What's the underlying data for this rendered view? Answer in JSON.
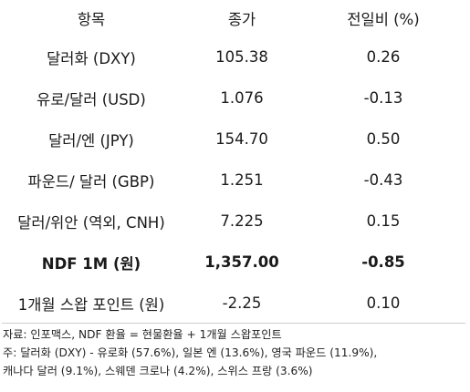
{
  "table": {
    "headers": [
      "항목",
      "종가",
      "전일비 (%)"
    ],
    "rows": [
      {
        "item": "달러화 (DXY)",
        "close": "105.38",
        "change": "0.26"
      },
      {
        "item": "유로/달러 (USD)",
        "close": "1.076",
        "change": "-0.13"
      },
      {
        "item": "달러/엔 (JPY)",
        "close": "154.70",
        "change": "0.50"
      },
      {
        "item": "파운드/ 달러 (GBP)",
        "close": "1.251",
        "change": "-0.43"
      },
      {
        "item": "달러/위안 (역외, CNH)",
        "close": "7.225",
        "change": "0.15"
      },
      {
        "item": "NDF 1M (원)",
        "close": "1,357.00",
        "change": "-0.85"
      },
      {
        "item": "1개월 스왑 포인트 (원)",
        "close": "-2.25",
        "change": "0.10"
      }
    ]
  },
  "notes": {
    "source": "자료: 인포맥스, NDF 환율 = 현물환율 + 1개월 스왑포인트",
    "note_line1": "주: 달러화 (DXY) - 유로화 (57.6%), 일본 엔 (13.6%), 영국 파운드 (11.9%),",
    "note_line2": "캐나다 달러 (9.1%), 스웨덴 크로나 (4.2%), 스위스 프랑 (3.6%)"
  }
}
